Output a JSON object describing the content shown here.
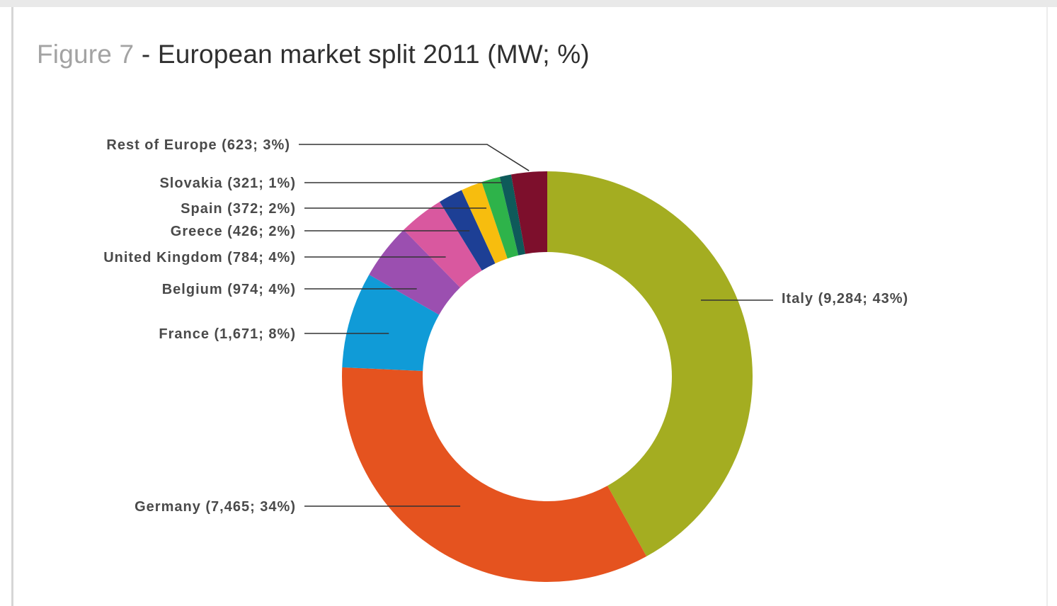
{
  "title": {
    "figure": "Figure 7",
    "text": "- European market split 2011 (MW; %)"
  },
  "chart_data": {
    "type": "pie",
    "donut": true,
    "title": "Figure 7 - European market split 2011 (MW; %)",
    "unit": "MW",
    "slices": [
      {
        "name": "Italy",
        "value": 9284,
        "percent": 43,
        "label": "Italy (9,284; 43%)",
        "color": "#a4ad21"
      },
      {
        "name": "Germany",
        "value": 7465,
        "percent": 34,
        "label": "Germany (7,465; 34%)",
        "color": "#e5531f"
      },
      {
        "name": "France",
        "value": 1671,
        "percent": 8,
        "label": "France (1,671; 8%)",
        "color": "#109bd7"
      },
      {
        "name": "Belgium",
        "value": 974,
        "percent": 4,
        "label": "Belgium (974; 4%)",
        "color": "#9b4fb0"
      },
      {
        "name": "United Kingdom",
        "value": 784,
        "percent": 4,
        "label": "United Kingdom (784; 4%)",
        "color": "#d9589f"
      },
      {
        "name": "Greece",
        "value": 426,
        "percent": 2,
        "label": "Greece (426; 2%)",
        "color": "#1d3f95"
      },
      {
        "name": "Spain",
        "value": 372,
        "percent": 2,
        "label": "Spain (372; 2%)",
        "color": "#f7bd0e"
      },
      {
        "name": "Slovakia",
        "value": 321,
        "percent": 1,
        "label": "Slovakia (321; 1%)",
        "color": "#2eb34a"
      },
      {
        "name": "Rest of Europe",
        "value": 623,
        "percent": 3,
        "label": "Rest of Europe (623; 3%)",
        "color": "#7d0f2c"
      }
    ],
    "order": [
      "Italy",
      "Germany",
      "France",
      "Belgium",
      "United Kingdom",
      "Greece",
      "Spain",
      "Slovakia",
      "Rest of Europe"
    ],
    "extra_wedge_colors": [
      "#0e5a5a"
    ]
  }
}
